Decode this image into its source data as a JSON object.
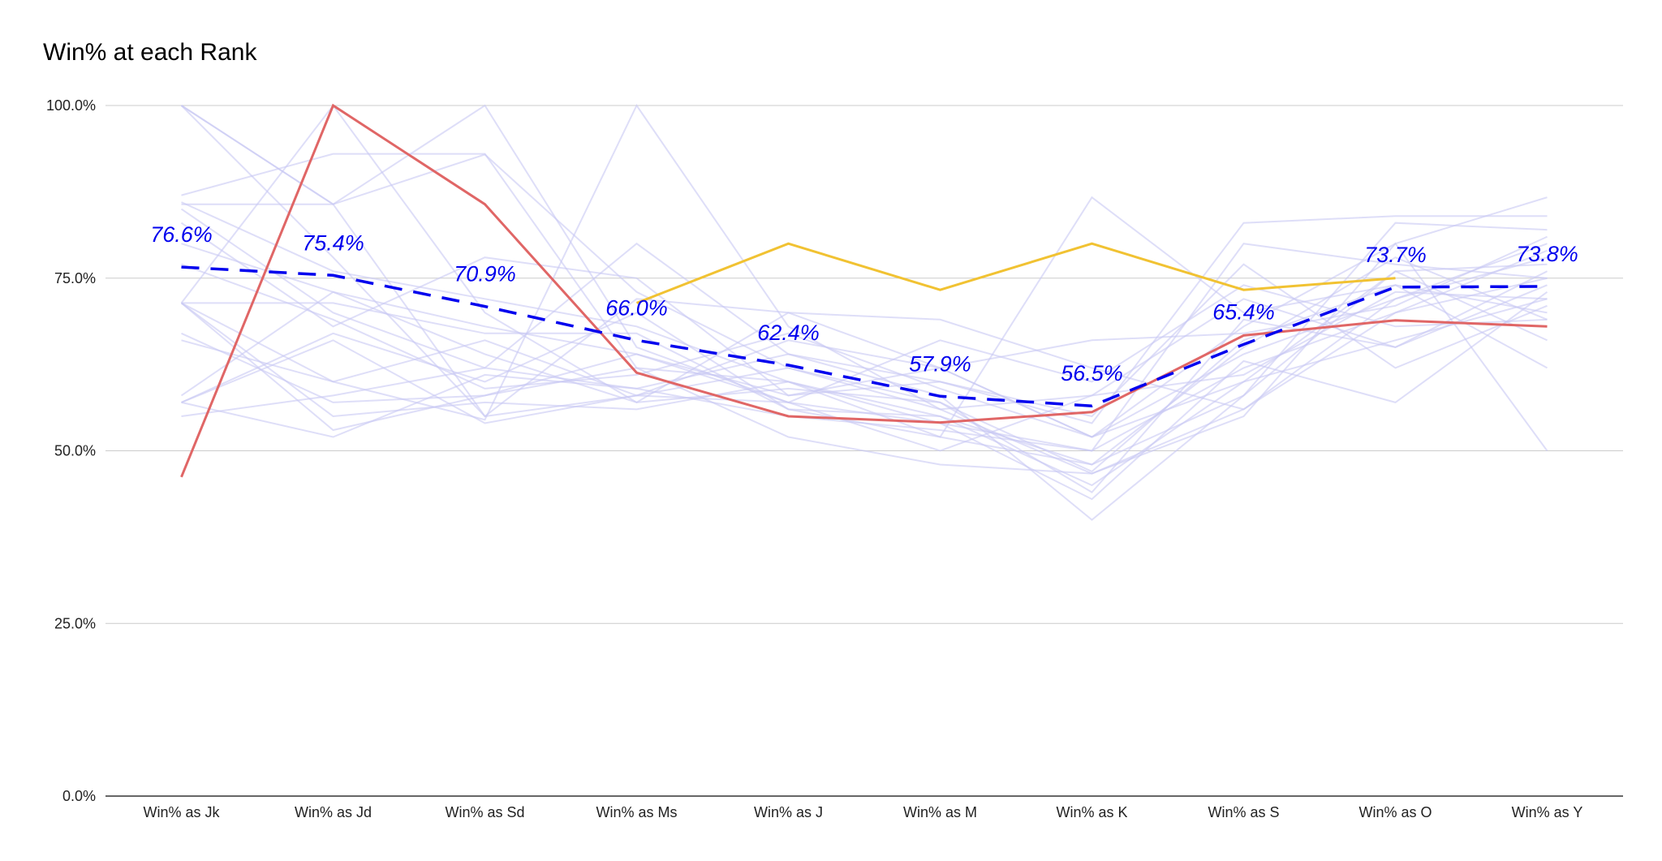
{
  "chart_data": {
    "type": "line",
    "title": "Win% at each Rank",
    "xlabel": "",
    "ylabel": "",
    "categories": [
      "Win% as Jk",
      "Win% as Jd",
      "Win% as Sd",
      "Win% as Ms",
      "Win% as J",
      "Win% as M",
      "Win% as K",
      "Win% as S",
      "Win% as O",
      "Win% as Y"
    ],
    "y_ticks": [
      "0.0%",
      "25.0%",
      "50.0%",
      "75.0%",
      "100.0%"
    ],
    "ylim": [
      0,
      100
    ],
    "grid": true,
    "legend": "none",
    "colors": {
      "background_lines": "#c8c8f4",
      "average": "#0000ee",
      "red": "#e06666",
      "yellow": "#f1c232",
      "grid": "#cccccc",
      "axis": "#333333"
    },
    "average_series": {
      "values": [
        76.6,
        75.4,
        70.9,
        66.0,
        62.4,
        57.9,
        56.5,
        65.4,
        73.7,
        73.8
      ],
      "labels": [
        "76.6%",
        "75.4%",
        "70.9%",
        "66.0%",
        "62.4%",
        "57.9%",
        "56.5%",
        "65.4%",
        "73.7%",
        "73.8%"
      ],
      "style": "dashed"
    },
    "highlight_series": [
      {
        "color": "red",
        "values": [
          46.2,
          100.0,
          85.7,
          61.3,
          55.0,
          54.1,
          55.6,
          66.7,
          68.9,
          68.0
        ]
      },
      {
        "color": "yellow",
        "values": [
          null,
          null,
          null,
          71.4,
          80.0,
          73.3,
          80.0,
          73.3,
          75.0,
          null
        ]
      }
    ],
    "background_series": [
      [
        100.0,
        85.7,
        92.9,
        73.0,
        62.0,
        57.0,
        47.0,
        66.0,
        74.0,
        70.0
      ],
      [
        100.0,
        85.7,
        100.0,
        65.0,
        57.0,
        54.0,
        50.0,
        62.0,
        70.0,
        75.0
      ],
      [
        100.0,
        78.0,
        55.0,
        72.0,
        70.0,
        69.0,
        62.0,
        56.0,
        72.0,
        78.0
      ],
      [
        87.0,
        93.0,
        93.0,
        62.0,
        60.0,
        55.0,
        45.0,
        60.0,
        66.0,
        72.0
      ],
      [
        85.7,
        85.7,
        55.0,
        58.0,
        66.0,
        62.0,
        52.0,
        68.0,
        80.0,
        86.7
      ],
      [
        85.0,
        70.0,
        62.0,
        80.0,
        64.0,
        58.0,
        40.0,
        58.0,
        83.0,
        82.0
      ],
      [
        83.0,
        68.0,
        78.0,
        75.0,
        58.0,
        60.0,
        54.0,
        83.0,
        84.0,
        84.0
      ],
      [
        71.4,
        100.0,
        70.0,
        57.0,
        70.0,
        62.0,
        52.0,
        60.0,
        76.0,
        66.0
      ],
      [
        71.4,
        71.4,
        67.0,
        67.0,
        56.0,
        52.0,
        86.7,
        70.0,
        74.0,
        62.0
      ],
      [
        71.4,
        60.0,
        54.5,
        100.0,
        68.0,
        56.0,
        46.7,
        55.0,
        80.0,
        50.0
      ],
      [
        71.4,
        55.0,
        57.0,
        56.0,
        60.0,
        54.0,
        43.0,
        63.0,
        57.0,
        73.0
      ],
      [
        71.4,
        53.0,
        58.0,
        64.0,
        57.0,
        50.0,
        58.0,
        72.0,
        65.0,
        76.0
      ],
      [
        67.0,
        57.0,
        58.0,
        62.0,
        52.0,
        48.0,
        46.7,
        56.0,
        70.0,
        79.0
      ],
      [
        57.0,
        67.0,
        60.0,
        70.0,
        56.0,
        55.0,
        48.0,
        65.0,
        78.0,
        69.0
      ],
      [
        57.0,
        52.0,
        61.0,
        59.0,
        64.0,
        60.0,
        55.0,
        77.0,
        62.0,
        71.0
      ],
      [
        57.0,
        66.0,
        54.0,
        58.0,
        57.0,
        66.0,
        60.0,
        74.0,
        68.0,
        69.0
      ],
      [
        55.0,
        58.0,
        62.0,
        59.0,
        55.0,
        53.0,
        50.0,
        80.0,
        77.0,
        75.0
      ],
      [
        77.0,
        69.0,
        59.0,
        61.0,
        67.0,
        59.0,
        52.0,
        64.0,
        72.0,
        80.0
      ],
      [
        80.0,
        73.0,
        64.0,
        57.0,
        59.0,
        57.0,
        44.0,
        69.0,
        65.0,
        74.0
      ],
      [
        66.0,
        60.0,
        66.0,
        58.0,
        62.0,
        56.0,
        58.0,
        61.0,
        73.0,
        72.0
      ],
      [
        86.0,
        76.0,
        72.0,
        68.0,
        60.0,
        52.0,
        48.0,
        58.0,
        76.0,
        77.0
      ],
      [
        58.0,
        73.0,
        68.0,
        64.0,
        58.0,
        62.0,
        66.0,
        67.0,
        71.0,
        81.0
      ]
    ]
  }
}
